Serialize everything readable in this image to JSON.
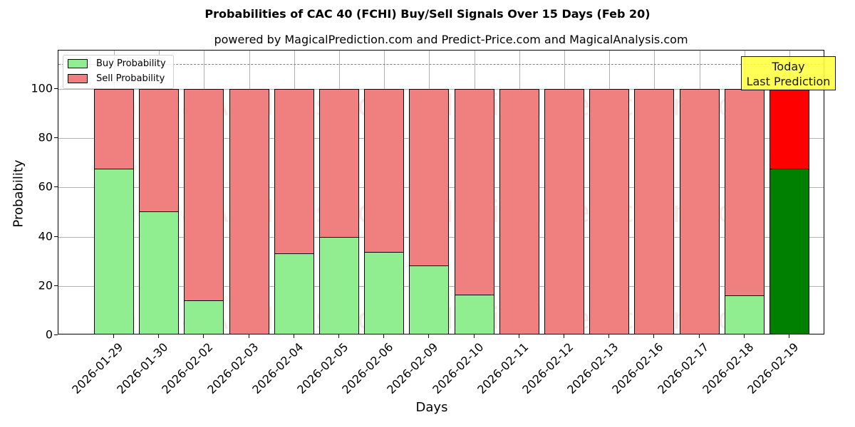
{
  "chart_data": {
    "type": "bar",
    "stacked": true,
    "title": "Probabilities of CAC 40 (FCHI) Buy/Sell Signals Over 15 Days (Feb 20)",
    "subtitle": "powered by MagicalPrediction.com and Predict-Price.com and MagicalAnalysis.com",
    "xlabel": "Days",
    "ylabel": "Probability",
    "ylim": [
      0,
      115
    ],
    "yticks": [
      "0",
      "20",
      "40",
      "60",
      "80",
      "100"
    ],
    "grid": true,
    "reference_line": 110,
    "legend_position": "upper left",
    "categories": [
      "2026-01-29",
      "2026-01-30",
      "2026-02-02",
      "2026-02-03",
      "2026-02-04",
      "2026-02-05",
      "2026-02-06",
      "2026-02-09",
      "2026-02-10",
      "2026-02-11",
      "2026-02-12",
      "2026-02-13",
      "2026-02-16",
      "2026-02-17",
      "2026-02-18",
      "2026-02-19"
    ],
    "series": [
      {
        "name": "Buy Probability",
        "color": "#90ee90",
        "values": [
          67.6,
          50.3,
          14.2,
          0,
          33.1,
          40.0,
          33.7,
          28.2,
          16.5,
          0,
          0,
          0,
          0,
          0,
          16.3,
          67.6
        ]
      },
      {
        "name": "Sell Probability",
        "color": "#f08080",
        "values": [
          32.4,
          49.7,
          85.8,
          100,
          66.9,
          60.0,
          66.3,
          71.8,
          83.5,
          100,
          100,
          100,
          100,
          100,
          83.7,
          32.4
        ]
      }
    ],
    "highlight": {
      "index": 15,
      "buy_color": "#008000",
      "sell_color": "#ff0000"
    },
    "annotation": {
      "line1": "Today",
      "line2": "Last Prediction",
      "bg": "#ffff44"
    },
    "watermarks": [
      "MagicalAnalysis.com",
      "MagicalPrediction.com"
    ]
  }
}
